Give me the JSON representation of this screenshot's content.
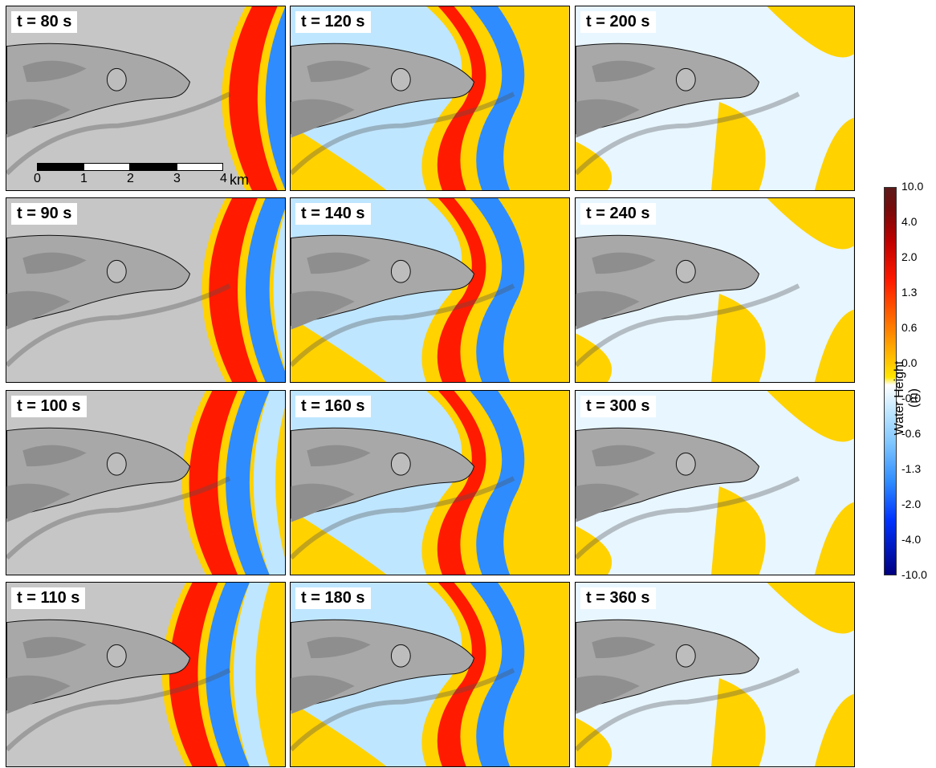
{
  "panels": [
    {
      "label": "t = 80 s",
      "phase": 0,
      "show_scale": true
    },
    {
      "label": "t = 120 s",
      "phase": 4
    },
    {
      "label": "t = 200 s",
      "phase": 8
    },
    {
      "label": "t = 90 s",
      "phase": 1
    },
    {
      "label": "t = 140 s",
      "phase": 5
    },
    {
      "label": "t = 240 s",
      "phase": 9
    },
    {
      "label": "t = 100 s",
      "phase": 2
    },
    {
      "label": "t = 160 s",
      "phase": 6
    },
    {
      "label": "t = 300 s",
      "phase": 10
    },
    {
      "label": "t = 110 s",
      "phase": 3
    },
    {
      "label": "t = 180 s",
      "phase": 7
    },
    {
      "label": "t = 360 s",
      "phase": 11
    }
  ],
  "scale_bar": {
    "ticks": [
      "0",
      "1",
      "2",
      "3",
      "4"
    ],
    "unit": "km"
  },
  "legend": {
    "title": "Water Height (m)",
    "ticks": [
      "10.0",
      "4.0",
      "2.0",
      "1.3",
      "0.6",
      "0.0",
      "-0.0",
      "-0.6",
      "-1.3",
      "-2.0",
      "-4.0",
      "-10.0"
    ]
  },
  "colors": {
    "high": "#7a0a0a",
    "red": "#ff1a00",
    "orange": "#ff8c00",
    "yellow": "#ffd200",
    "white": "#ffffff",
    "lightblue": "#bfe6ff",
    "blue": "#2f8cff",
    "darkblue": "#000080",
    "land": "#a8a8a8"
  }
}
